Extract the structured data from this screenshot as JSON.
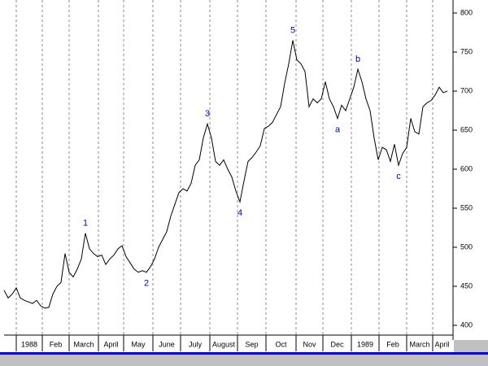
{
  "chart_data": {
    "type": "line",
    "x": [
      0,
      1,
      2,
      3,
      4,
      5,
      6,
      7,
      8,
      9,
      10,
      11,
      12,
      13,
      14,
      15,
      16,
      17,
      18,
      19,
      20,
      21,
      22,
      23,
      24,
      25,
      26,
      27,
      28,
      29,
      30,
      31,
      32,
      33,
      34,
      35,
      36,
      37,
      38,
      39,
      40,
      41,
      42,
      43,
      44,
      45,
      46,
      47,
      48,
      49,
      50,
      51,
      52,
      53,
      54,
      55,
      56,
      57,
      58,
      59,
      60,
      61,
      62,
      63,
      64,
      65,
      66,
      67,
      68,
      69,
      70,
      71,
      72,
      73,
      74,
      75,
      76,
      77,
      78,
      79,
      80,
      81,
      82,
      83,
      84,
      85,
      86,
      87,
      88,
      89,
      90,
      91,
      92,
      93,
      94,
      95,
      96,
      97,
      98,
      99,
      100,
      101,
      102,
      103,
      104,
      105,
      106,
      107,
      108,
      109
    ],
    "series": [
      {
        "color": "#000000",
        "values": [
          445,
          435,
          440,
          448,
          435,
          432,
          430,
          428,
          432,
          425,
          422,
          423,
          440,
          450,
          455,
          492,
          468,
          462,
          472,
          485,
          518,
          498,
          492,
          488,
          490,
          478,
          485,
          490,
          498,
          502,
          488,
          480,
          472,
          468,
          470,
          468,
          475,
          485,
          500,
          510,
          520,
          540,
          555,
          570,
          575,
          572,
          582,
          605,
          612,
          640,
          658,
          640,
          610,
          605,
          612,
          600,
          590,
          572,
          558,
          585,
          610,
          615,
          622,
          630,
          652,
          655,
          660,
          670,
          680,
          710,
          735,
          765,
          740,
          735,
          725,
          680,
          690,
          685,
          690,
          712,
          690,
          680,
          665,
          682,
          675,
          690,
          705,
          728,
          712,
          690,
          675,
          640,
          612,
          628,
          625,
          610,
          632,
          605,
          620,
          628,
          665,
          648,
          645,
          680,
          685,
          688,
          695,
          705,
          698,
          700
        ]
      }
    ],
    "xlim": [
      0,
      110
    ],
    "xticks": [
      {
        "value": 3,
        "label": "1988"
      },
      {
        "value": 9.4,
        "label": "Feb"
      },
      {
        "value": 16,
        "label": "March"
      },
      {
        "value": 23.2,
        "label": "April"
      },
      {
        "value": 29.4,
        "label": "May"
      },
      {
        "value": 36.6,
        "label": "June"
      },
      {
        "value": 43.4,
        "label": "July"
      },
      {
        "value": 50.6,
        "label": "August"
      },
      {
        "value": 57.4,
        "label": "Sep"
      },
      {
        "value": 64.4,
        "label": "Oct"
      },
      {
        "value": 71.8,
        "label": "Nov"
      },
      {
        "value": 78.4,
        "label": "Dec"
      },
      {
        "value": 85.4,
        "label": "1989"
      },
      {
        "value": 92.2,
        "label": "Feb"
      },
      {
        "value": 99,
        "label": "March"
      },
      {
        "value": 105.4,
        "label": "April"
      }
    ],
    "ylim": [
      387.5,
      816.7
    ],
    "yticks": [
      400,
      450,
      500,
      550,
      600,
      650,
      700,
      750,
      800
    ],
    "grid": true,
    "annotations": [
      {
        "text": "1",
        "at": 20,
        "position": "above"
      },
      {
        "text": "2",
        "at": 35,
        "position": "below"
      },
      {
        "text": "3",
        "at": 50,
        "position": "above"
      },
      {
        "text": "4",
        "at": 58,
        "position": "below"
      },
      {
        "text": "5",
        "at": 71,
        "position": "above"
      },
      {
        "text": "a",
        "at": 82,
        "position": "below"
      },
      {
        "text": "b",
        "at": 87,
        "position": "above"
      },
      {
        "text": "c",
        "at": 97,
        "position": "below"
      }
    ]
  }
}
